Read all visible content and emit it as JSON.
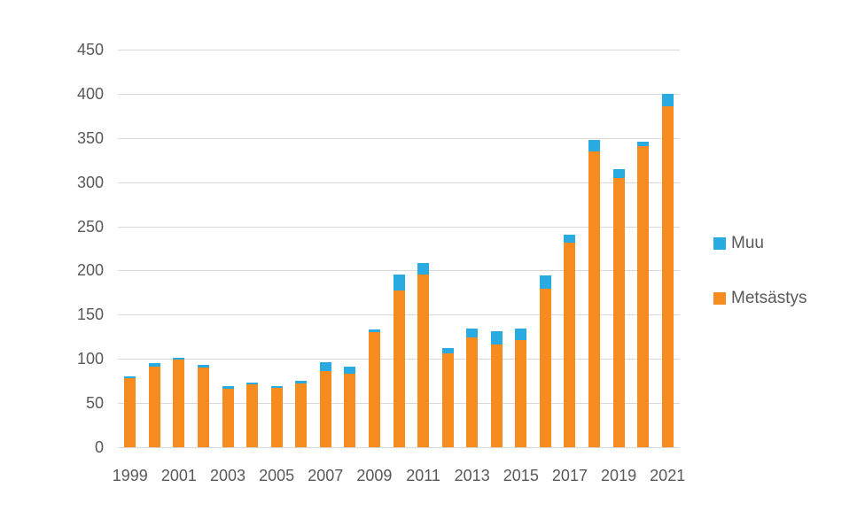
{
  "title": "",
  "colors": {
    "background": "#FFFFFF",
    "grid": "#D9D9D9",
    "text": "#595959",
    "muu_blue": "#29ABE2",
    "metsastys_orange": "#F68B1F"
  },
  "legend": {
    "items": [
      {
        "label": "Muu",
        "color": "#29ABE2"
      },
      {
        "label": "Metsästys",
        "color": "#F68B1F"
      }
    ]
  },
  "chart_data": {
    "type": "bar",
    "stacked": true,
    "categories": [
      1999,
      2000,
      2001,
      2002,
      2003,
      2004,
      2005,
      2006,
      2007,
      2008,
      2009,
      2010,
      2011,
      2012,
      2013,
      2014,
      2015,
      2016,
      2017,
      2018,
      2019,
      2020,
      2021
    ],
    "x_tick_labels": [
      "1999",
      "2001",
      "2003",
      "2005",
      "2007",
      "2009",
      "2011",
      "2013",
      "2015",
      "2017",
      "2019",
      "2021"
    ],
    "series": [
      {
        "name": "Metsästys",
        "color": "#F68B1F",
        "values": [
          78,
          91,
          99,
          90,
          66,
          71,
          67,
          72,
          86,
          83,
          130,
          177,
          195,
          106,
          124,
          116,
          121,
          179,
          232,
          335,
          305,
          341,
          386
        ]
      },
      {
        "name": "Muu",
        "color": "#29ABE2",
        "values": [
          2,
          4,
          2,
          3,
          3,
          2,
          2,
          3,
          10,
          8,
          3,
          18,
          13,
          6,
          10,
          15,
          13,
          15,
          9,
          13,
          10,
          5,
          14
        ]
      }
    ],
    "totals": [
      80,
      95,
      101,
      93,
      69,
      73,
      69,
      75,
      96,
      91,
      133,
      195,
      208,
      112,
      134,
      131,
      134,
      194,
      241,
      348,
      315,
      346,
      400
    ],
    "title": "",
    "xlabel": "",
    "ylabel": "",
    "ylim": [
      0,
      450
    ],
    "y_ticks": [
      0,
      50,
      100,
      150,
      200,
      250,
      300,
      350,
      400,
      450
    ],
    "grid": "horizontal",
    "legend_position": "right"
  }
}
